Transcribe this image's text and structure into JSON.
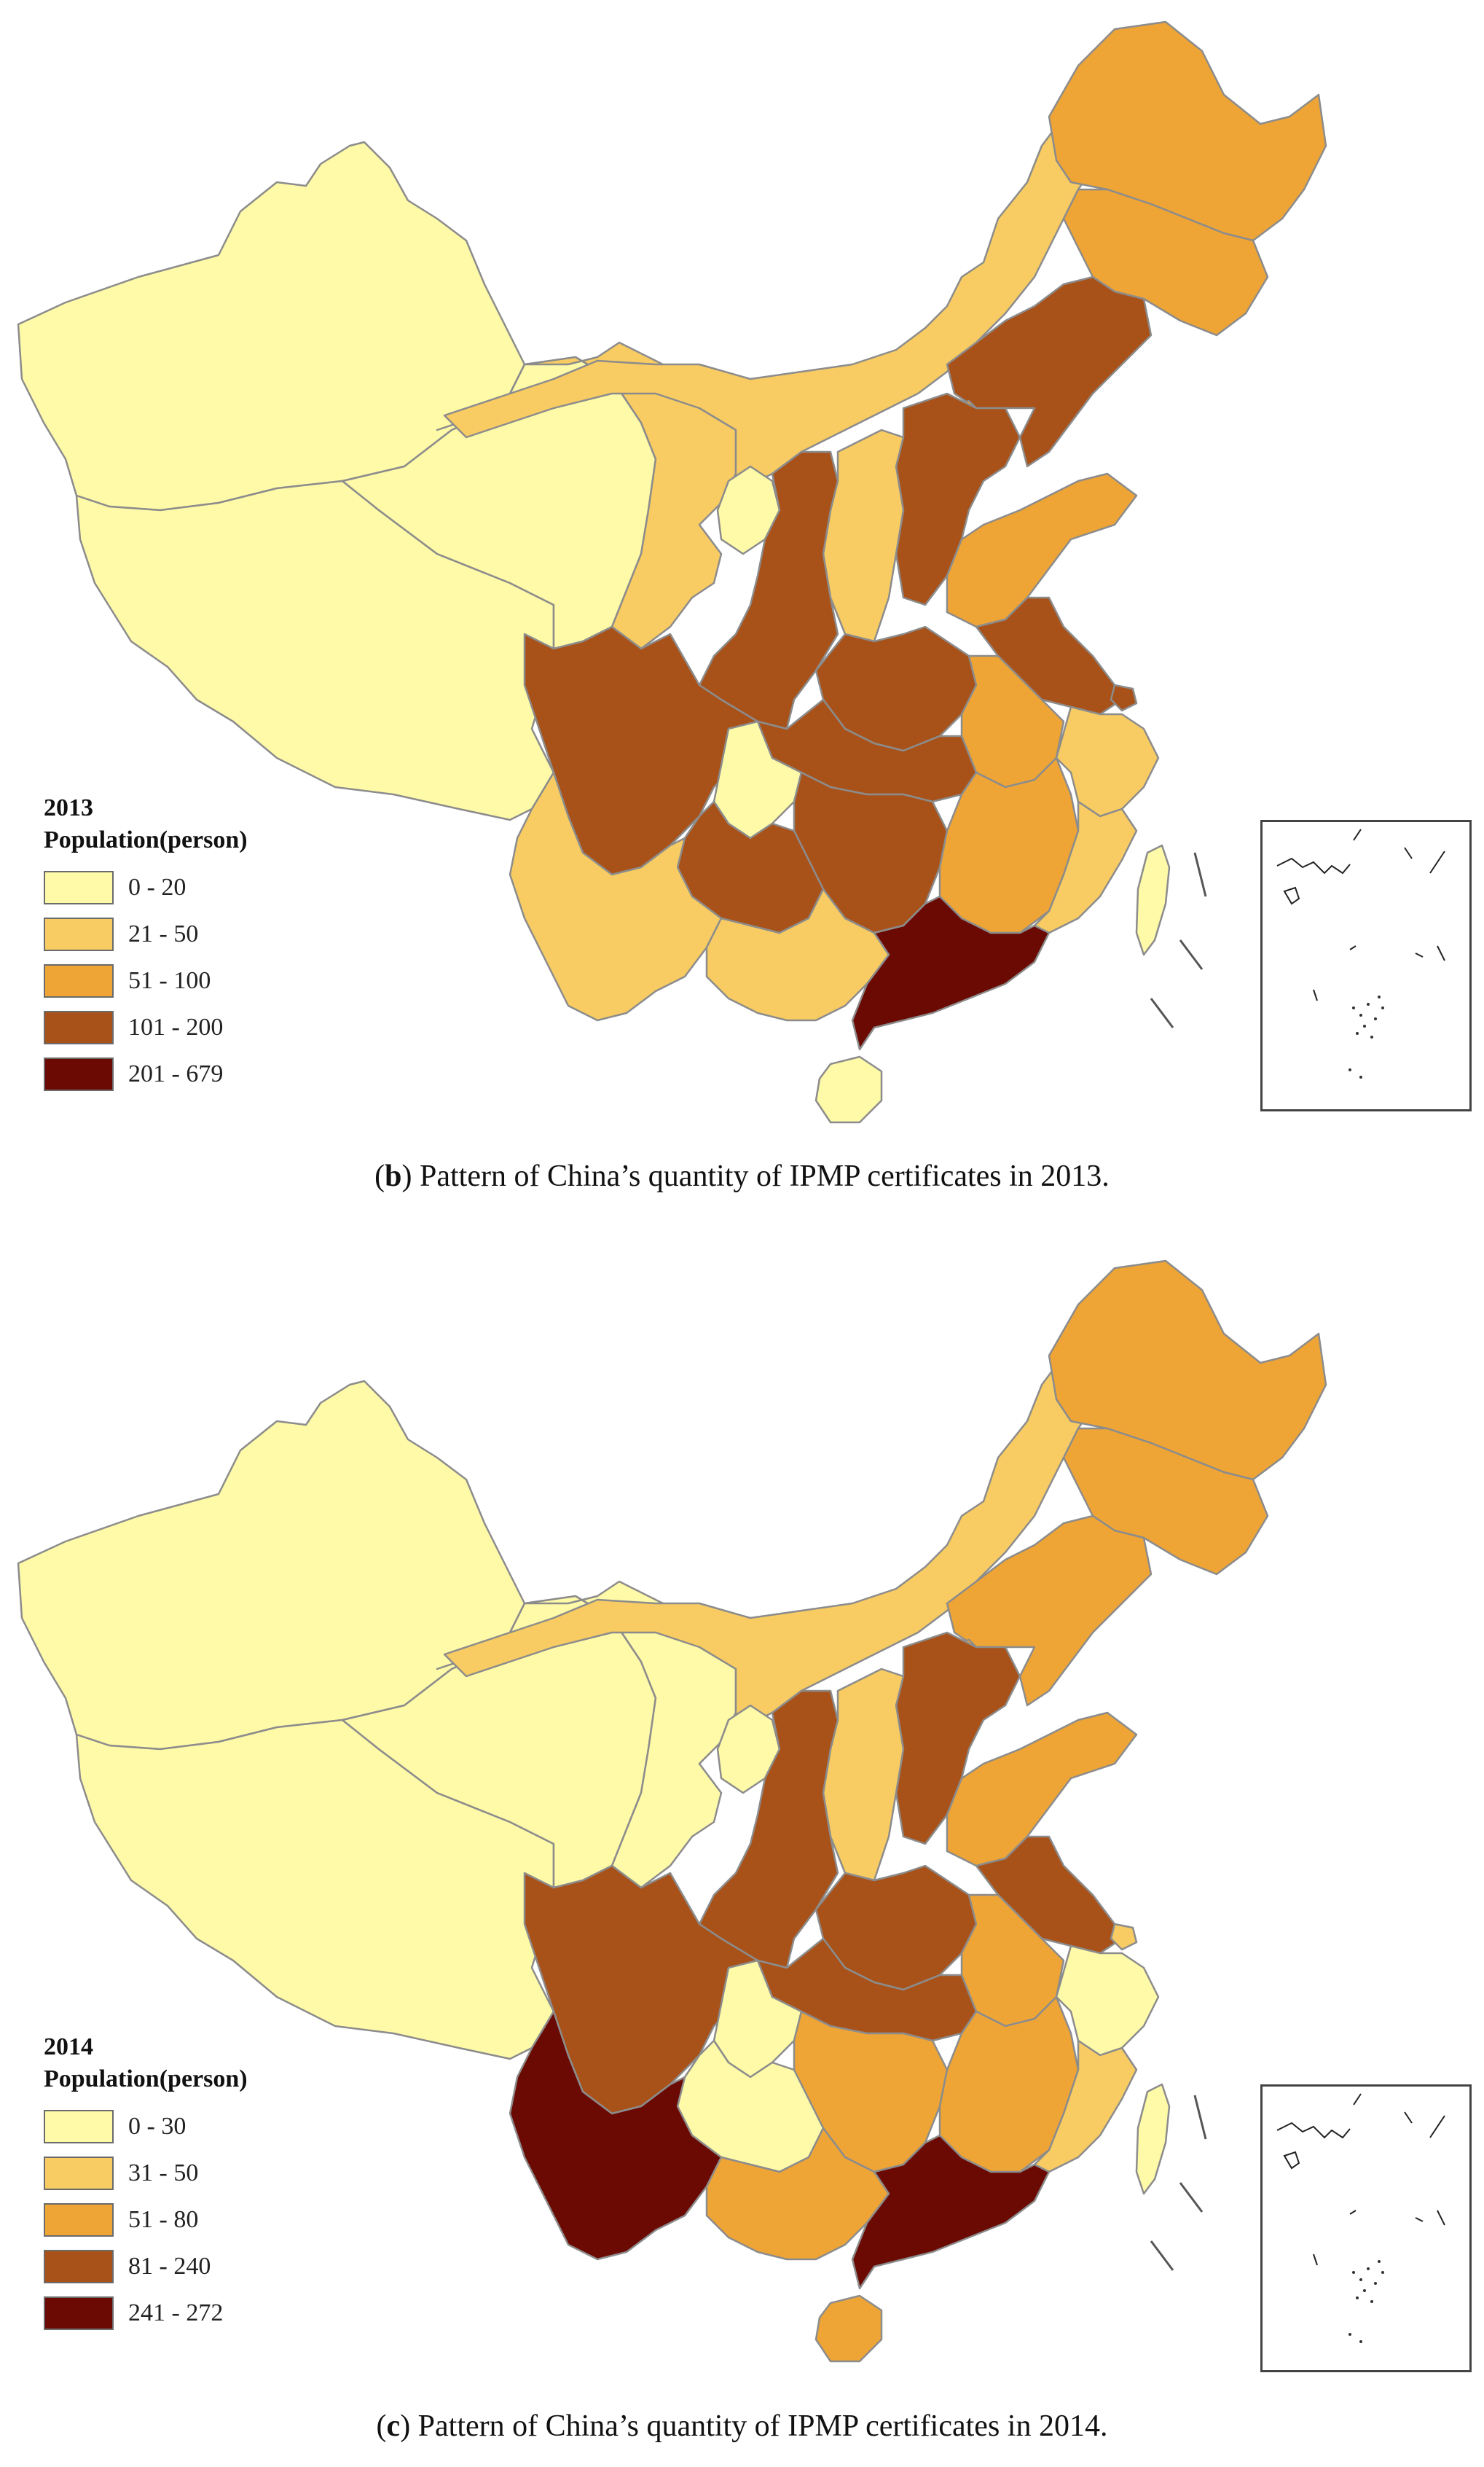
{
  "panels": [
    {
      "year": "2013",
      "legend_title": "Population(person)",
      "legend": [
        {
          "label": "0 - 20",
          "color": "#FFFAA8"
        },
        {
          "label": "21 - 50",
          "color": "#F8CC62"
        },
        {
          "label": "51 - 100",
          "color": "#EFA535"
        },
        {
          "label": "101 - 200",
          "color": "#A8521A"
        },
        {
          "label": "201 - 679",
          "color": "#6B0A02"
        }
      ],
      "caption_letter": "b",
      "caption_text": ") Pattern of China’s quantity of IPMP certificates in 2013."
    },
    {
      "year": "2014",
      "legend_title": "Population(person)",
      "legend": [
        {
          "label": "0 - 30",
          "color": "#FFFAA8"
        },
        {
          "label": "31 - 50",
          "color": "#F8CC62"
        },
        {
          "label": "51 - 80",
          "color": "#EFA535"
        },
        {
          "label": "81 - 240",
          "color": "#A8521A"
        },
        {
          "label": "241 - 272",
          "color": "#6B0A02"
        }
      ],
      "caption_letter": "c",
      "caption_text": ") Pattern of China’s quantity of IPMP certificates in 2014."
    }
  ],
  "region_classes": {
    "2013": {
      "xinjiang": 0,
      "tibet": 0,
      "qinghai": 0,
      "gansu": 1,
      "inner-mongolia": 1,
      "heilongjiang": 2,
      "jilin": 2,
      "liaoning": 3,
      "beijing": 2,
      "tianjin": 2,
      "hebei": 3,
      "shanxi": 1,
      "ningxia": 0,
      "shaanxi": 3,
      "henan": 3,
      "shandong": 2,
      "jiangsu": 3,
      "shanghai": 3,
      "anhui": 2,
      "hubei": 3,
      "sichuan": 3,
      "chongqing": 0,
      "hunan": 3,
      "jiangxi": 2,
      "zhejiang": 1,
      "fujian": 1,
      "guizhou": 3,
      "yunnan": 1,
      "guangxi": 1,
      "guangdong": 4,
      "hainan": 0,
      "taiwan": 0
    },
    "2014": {
      "xinjiang": 0,
      "tibet": 0,
      "qinghai": 0,
      "gansu": 0,
      "inner-mongolia": 1,
      "heilongjiang": 2,
      "jilin": 2,
      "liaoning": 2,
      "beijing": 2,
      "tianjin": 2,
      "hebei": 3,
      "shanxi": 1,
      "ningxia": 0,
      "shaanxi": 3,
      "henan": 3,
      "shandong": 2,
      "jiangsu": 3,
      "shanghai": 1,
      "anhui": 2,
      "hubei": 3,
      "sichuan": 3,
      "chongqing": 0,
      "hunan": 2,
      "jiangxi": 2,
      "zhejiang": 0,
      "fujian": 1,
      "guizhou": 0,
      "yunnan": 4,
      "guangxi": 2,
      "guangdong": 4,
      "hainan": 2,
      "taiwan": 0
    }
  }
}
